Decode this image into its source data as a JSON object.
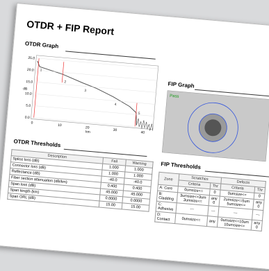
{
  "header": {
    "title": "OTDR + FIP Report"
  },
  "otdr_graph": {
    "heading": "OTDR Graph",
    "y_unit": "dB",
    "x_unit": "km",
    "yticks": [
      "25.0",
      "20.0",
      "15.0",
      "10.0",
      "5.0",
      "0.0"
    ],
    "xticks": [
      "0",
      "10",
      "20",
      "30",
      "40"
    ],
    "events": [
      "1",
      "2",
      "3",
      "4",
      "5"
    ]
  },
  "fip_graph": {
    "heading": "FIP Graph",
    "status": "Pass"
  },
  "otdr_thresholds": {
    "heading": "OTDR Thresholds",
    "columns": [
      "Description",
      "Fail",
      "Warning"
    ],
    "rows": [
      [
        "Splice loss (dB)",
        "1.000",
        "1.000"
      ],
      [
        "Connector loss (dB)",
        "1.000",
        "1.000"
      ],
      [
        "Reflectance (dB)",
        "-40.0",
        "-40.0"
      ],
      [
        "Fiber section attenuation (dB/km)",
        "0.400",
        "0.400"
      ],
      [
        "Span loss (dB)",
        "45.000",
        "45.000"
      ],
      [
        "Span length (km)",
        "0.0000",
        "0.0000"
      ],
      [
        "Span ORL (dB)",
        "15.00",
        "15.00"
      ]
    ]
  },
  "fip_thresholds": {
    "heading": "FIP Thresholds",
    "columns": [
      "Zone",
      "Scratches",
      "Defects"
    ],
    "subcolumns": [
      "Criteria",
      "Thr",
      "Criteria",
      "Thr"
    ],
    "rows": [
      [
        "A: Core",
        "0umsize<=",
        "0",
        "0umsize<=",
        "0"
      ],
      [
        "B: Cladding",
        "3umsize<=3um 3umsize<=",
        "any 0",
        "2umsize<=5um 5umsize<=",
        "any 0"
      ],
      [
        "C: Adhesive",
        "---",
        "---",
        "---",
        "---"
      ],
      [
        "D: Contact",
        "0umsize<=",
        "any",
        "0umsize<=10um 10umsize<=",
        "any 0"
      ]
    ]
  }
}
